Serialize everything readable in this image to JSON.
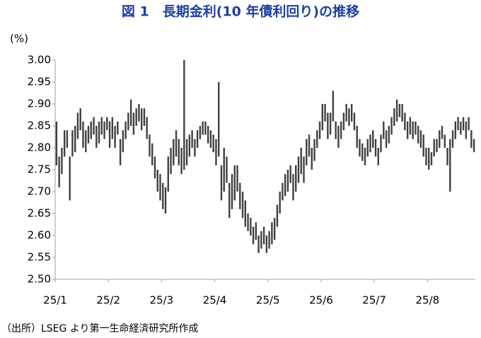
{
  "chart_data": {
    "type": "range-bar",
    "title": "図 1　長期金利(10 年債利回り)の推移",
    "y_axis_label": "(%)",
    "source": "（出所）LSEG より第一生命経済研究所作成",
    "categories": [
      "25/1",
      null,
      null,
      null,
      null,
      null,
      null,
      null,
      null,
      null,
      null,
      null,
      null,
      null,
      null,
      null,
      null,
      null,
      null,
      null,
      "25/2",
      null,
      null,
      null,
      null,
      null,
      null,
      null,
      null,
      null,
      null,
      null,
      null,
      null,
      null,
      null,
      null,
      null,
      null,
      null,
      "25/3",
      null,
      null,
      null,
      null,
      null,
      null,
      null,
      null,
      null,
      null,
      null,
      null,
      null,
      null,
      null,
      null,
      null,
      null,
      null,
      "25/4",
      null,
      null,
      null,
      null,
      null,
      null,
      null,
      null,
      null,
      null,
      null,
      null,
      null,
      null,
      null,
      null,
      null,
      null,
      null,
      "25/5",
      null,
      null,
      null,
      null,
      null,
      null,
      null,
      null,
      null,
      null,
      null,
      null,
      null,
      null,
      null,
      null,
      null,
      null,
      null,
      "25/6",
      null,
      null,
      null,
      null,
      null,
      null,
      null,
      null,
      null,
      null,
      null,
      null,
      null,
      null,
      null,
      null,
      null,
      null,
      null,
      "25/7",
      null,
      null,
      null,
      null,
      null,
      null,
      null,
      null,
      null,
      null,
      null,
      null,
      null,
      null,
      null,
      null,
      null,
      null,
      null,
      "25/8",
      null,
      null,
      null,
      null,
      null,
      null,
      null,
      null,
      null,
      null,
      null,
      null,
      null,
      null,
      null,
      null,
      null
    ],
    "series": [
      {
        "color": "#404040",
        "high": [
          2.86,
          2.78,
          2.8,
          2.84,
          2.84,
          2.78,
          2.84,
          2.85,
          2.88,
          2.89,
          2.86,
          2.84,
          2.85,
          2.86,
          2.87,
          2.85,
          2.86,
          2.87,
          2.86,
          2.87,
          2.86,
          2.87,
          2.85,
          2.86,
          2.82,
          2.84,
          2.86,
          2.88,
          2.91,
          2.88,
          2.89,
          2.9,
          2.89,
          2.89,
          2.87,
          2.83,
          2.81,
          2.78,
          2.75,
          2.74,
          2.72,
          2.71,
          2.78,
          2.8,
          2.82,
          2.84,
          2.82,
          2.8,
          3.0,
          2.82,
          2.83,
          2.84,
          2.82,
          2.84,
          2.85,
          2.86,
          2.86,
          2.85,
          2.84,
          2.83,
          2.82,
          2.95,
          2.76,
          2.8,
          2.78,
          2.72,
          2.74,
          2.76,
          2.76,
          2.72,
          2.7,
          2.68,
          2.65,
          2.64,
          2.62,
          2.63,
          2.6,
          2.61,
          2.62,
          2.6,
          2.61,
          2.63,
          2.64,
          2.67,
          2.7,
          2.72,
          2.74,
          2.75,
          2.76,
          2.74,
          2.76,
          2.78,
          2.8,
          2.78,
          2.82,
          2.83,
          2.8,
          2.82,
          2.84,
          2.86,
          2.9,
          2.9,
          2.88,
          2.88,
          2.93,
          2.86,
          2.85,
          2.86,
          2.88,
          2.9,
          2.89,
          2.9,
          2.88,
          2.85,
          2.82,
          2.81,
          2.8,
          2.82,
          2.83,
          2.84,
          2.82,
          2.8,
          2.83,
          2.86,
          2.84,
          2.85,
          2.87,
          2.89,
          2.91,
          2.9,
          2.9,
          2.88,
          2.86,
          2.87,
          2.86,
          2.86,
          2.85,
          2.84,
          2.83,
          2.8,
          2.8,
          2.79,
          2.82,
          2.82,
          2.84,
          2.85,
          2.83,
          2.8,
          2.82,
          2.84,
          2.86,
          2.87,
          2.86,
          2.87,
          2.86,
          2.87,
          2.84,
          2.82
        ],
        "low": [
          2.76,
          2.71,
          2.74,
          2.78,
          2.8,
          2.68,
          2.78,
          2.79,
          2.82,
          2.84,
          2.8,
          2.79,
          2.81,
          2.82,
          2.83,
          2.8,
          2.81,
          2.83,
          2.82,
          2.84,
          2.8,
          2.82,
          2.8,
          2.83,
          2.76,
          2.79,
          2.82,
          2.84,
          2.85,
          2.83,
          2.85,
          2.86,
          2.84,
          2.85,
          2.82,
          2.78,
          2.76,
          2.73,
          2.7,
          2.68,
          2.66,
          2.65,
          2.7,
          2.74,
          2.76,
          2.78,
          2.76,
          2.74,
          2.75,
          2.76,
          2.78,
          2.8,
          2.78,
          2.8,
          2.82,
          2.83,
          2.83,
          2.81,
          2.8,
          2.79,
          2.76,
          2.78,
          2.68,
          2.7,
          2.72,
          2.64,
          2.66,
          2.68,
          2.7,
          2.66,
          2.64,
          2.62,
          2.61,
          2.6,
          2.58,
          2.59,
          2.56,
          2.57,
          2.58,
          2.56,
          2.57,
          2.58,
          2.59,
          2.62,
          2.65,
          2.68,
          2.69,
          2.7,
          2.72,
          2.68,
          2.7,
          2.72,
          2.74,
          2.72,
          2.76,
          2.78,
          2.75,
          2.77,
          2.8,
          2.82,
          2.84,
          2.86,
          2.82,
          2.83,
          2.86,
          2.82,
          2.8,
          2.82,
          2.84,
          2.86,
          2.85,
          2.86,
          2.84,
          2.8,
          2.78,
          2.77,
          2.76,
          2.78,
          2.79,
          2.8,
          2.78,
          2.76,
          2.79,
          2.82,
          2.8,
          2.81,
          2.83,
          2.85,
          2.86,
          2.87,
          2.86,
          2.84,
          2.82,
          2.83,
          2.82,
          2.83,
          2.81,
          2.8,
          2.78,
          2.76,
          2.75,
          2.76,
          2.78,
          2.79,
          2.8,
          2.82,
          2.8,
          2.76,
          2.7,
          2.8,
          2.82,
          2.84,
          2.83,
          2.84,
          2.82,
          2.84,
          2.8,
          2.79
        ]
      }
    ],
    "ylim": [
      2.5,
      3.0
    ],
    "yticks": [
      {
        "value": 2.5,
        "label": "2.50"
      },
      2.55,
      {
        "value": 2.6,
        "label": "2.60"
      },
      2.65,
      {
        "value": 2.7,
        "label": "2.70"
      },
      2.75,
      {
        "value": 2.8,
        "label": "2.80"
      },
      2.85,
      {
        "value": 2.9,
        "label": "2.90"
      },
      2.95,
      {
        "value": 3.0,
        "label": "3.00"
      }
    ],
    "title_color": "#1f3f9f"
  }
}
